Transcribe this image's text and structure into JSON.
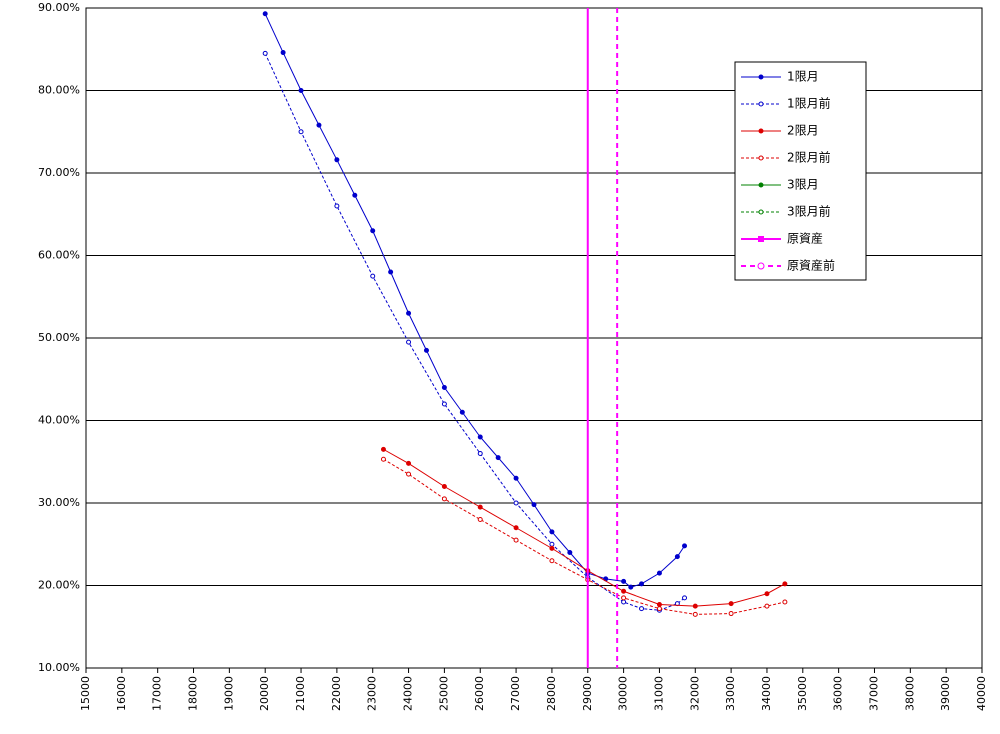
{
  "chart_data": {
    "type": "line",
    "xlim": [
      15000,
      40000
    ],
    "xticks": [
      15000,
      16000,
      17000,
      18000,
      19000,
      20000,
      21000,
      22000,
      23000,
      24000,
      25000,
      26000,
      27000,
      28000,
      29000,
      30000,
      31000,
      32000,
      33000,
      34000,
      35000,
      36000,
      37000,
      38000,
      39000,
      40000
    ],
    "ylim": [
      10,
      90
    ],
    "yticks": [
      {
        "value": 10,
        "label": "10.00%"
      },
      {
        "value": 20,
        "label": "20.00%"
      },
      {
        "value": 30,
        "label": "30.00%"
      },
      {
        "value": 40,
        "label": "40.00%"
      },
      {
        "value": 50,
        "label": "50.00%"
      },
      {
        "value": 60,
        "label": "60.00%"
      },
      {
        "value": 70,
        "label": "70.00%"
      },
      {
        "value": 80,
        "label": "80.00%"
      },
      {
        "value": 90,
        "label": "90.00%"
      }
    ],
    "grid": true,
    "legend": "upper-right",
    "series": [
      {
        "name": "1限月",
        "color": "#0000cc",
        "dashed": false,
        "marker": "filled",
        "x": [
          20000,
          20500,
          21000,
          21500,
          22000,
          22500,
          23000,
          23500,
          24000,
          24500,
          25000,
          25500,
          26000,
          26500,
          27000,
          27500,
          28000,
          28500,
          29000,
          29500,
          30000,
          30200,
          30500,
          31000,
          31500,
          31700
        ],
        "values": [
          89.3,
          84.6,
          80.0,
          75.8,
          71.6,
          67.3,
          63.0,
          58.0,
          53.0,
          48.5,
          44.0,
          41.0,
          38.0,
          35.5,
          33.0,
          29.8,
          26.5,
          24.0,
          21.5,
          20.8,
          20.5,
          19.8,
          20.2,
          21.5,
          23.5,
          24.8
        ]
      },
      {
        "name": "1限月前",
        "color": "#0000cc",
        "dashed": true,
        "marker": "open",
        "x": [
          20000,
          21000,
          22000,
          23000,
          24000,
          25000,
          26000,
          27000,
          28000,
          29000,
          30000,
          30500,
          31000,
          31500,
          31700
        ],
        "values": [
          84.5,
          75.0,
          66.0,
          57.5,
          49.5,
          42.0,
          36.0,
          30.0,
          25.0,
          21.0,
          18.0,
          17.2,
          17.0,
          17.8,
          18.5
        ]
      },
      {
        "name": "2限月",
        "color": "#dd0000",
        "dashed": false,
        "marker": "filled",
        "x": [
          23300,
          24000,
          25000,
          26000,
          27000,
          28000,
          29000,
          30000,
          31000,
          32000,
          33000,
          34000,
          34500
        ],
        "values": [
          36.5,
          34.8,
          32.0,
          29.5,
          27.0,
          24.5,
          21.8,
          19.3,
          17.7,
          17.5,
          17.8,
          19.0,
          20.2
        ]
      },
      {
        "name": "2限月前",
        "color": "#dd0000",
        "dashed": true,
        "marker": "open",
        "x": [
          23300,
          24000,
          25000,
          26000,
          27000,
          28000,
          29000,
          30000,
          31000,
          32000,
          33000,
          34000,
          34500
        ],
        "values": [
          35.3,
          33.5,
          30.5,
          28.0,
          25.5,
          23.0,
          20.7,
          18.5,
          17.2,
          16.5,
          16.6,
          17.5,
          18.0
        ]
      },
      {
        "name": "3限月",
        "color": "#008000",
        "dashed": false,
        "marker": "filled",
        "x": [],
        "values": []
      },
      {
        "name": "3限月前",
        "color": "#008000",
        "dashed": true,
        "marker": "open",
        "x": [],
        "values": []
      },
      {
        "name": "原資産",
        "color": "#ff00ff",
        "dashed": false,
        "marker": "square",
        "vline": 29000
      },
      {
        "name": "原資産前",
        "color": "#ff00ff",
        "dashed": true,
        "marker": "open",
        "vline": 29820
      }
    ]
  }
}
